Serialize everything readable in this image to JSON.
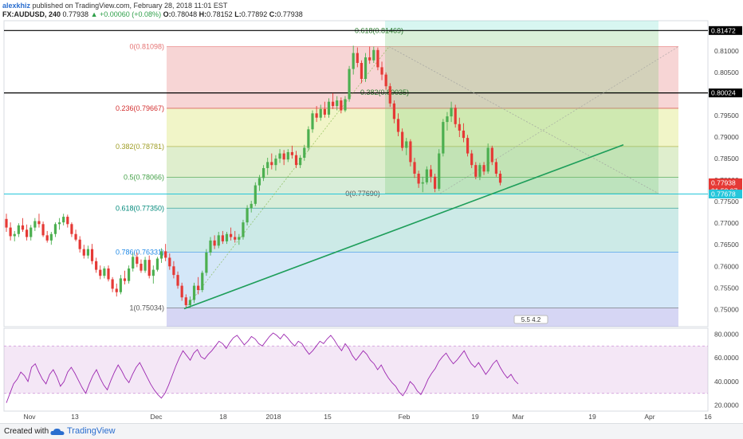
{
  "header": {
    "user": "alexkhiz",
    "published": "published on TradingView.com, February 28, 2018 11:01 EST",
    "symbol": "FX:AUDUSD, 240",
    "last": "0.77938",
    "change": "▲ +0.00060 (+0.08%)",
    "o_label": "O:",
    "o": "0.78048",
    "h_label": "H:",
    "h": "0.78152",
    "l_label": "L:",
    "l": "0.77892",
    "c_label": "C:",
    "c": "0.77938"
  },
  "footer": {
    "created": "Created with",
    "brand": "TradingView"
  },
  "colors": {
    "up": "#4caf50",
    "down": "#e53935",
    "trend": "#1e9e5a",
    "rsi": "#9c27b0"
  },
  "chart_data": {
    "type": "candlestick",
    "price_range": [
      0.746,
      0.817
    ],
    "price_ticks": [
      "0.81000",
      "0.80500",
      "0.80000",
      "0.79500",
      "0.79000",
      "0.78500",
      "0.78000",
      "0.77500",
      "0.77000",
      "0.76500",
      "0.76000",
      "0.75500",
      "0.75000"
    ],
    "x_ticks": [
      "Nov",
      "13",
      "Dec",
      "18",
      "2018",
      "15",
      "Feb",
      "19",
      "Mar",
      "19",
      "Apr",
      "16"
    ],
    "price_labels": [
      {
        "text": "0.81472",
        "kind": "line"
      },
      {
        "text": "0.80024",
        "kind": "line"
      },
      {
        "text": "0.77938",
        "kind": "last"
      },
      {
        "text": "01:58:07",
        "kind": "timer"
      },
      {
        "text": "0.77678",
        "kind": "cyan"
      }
    ],
    "fib_retracement": {
      "low": 0.75034,
      "high": 0.81098,
      "levels": [
        {
          "label": "0(0.81098)",
          "value": 0.81098,
          "color": "#e57373"
        },
        {
          "label": "0.236(0.79667)",
          "value": 0.79667,
          "color": "#d32f2f"
        },
        {
          "label": "0.382(0.78781)",
          "value": 0.78781,
          "color": "#9e9d24"
        },
        {
          "label": "0.5(0.78066)",
          "value": 0.78066,
          "color": "#43a047"
        },
        {
          "label": "0.618(0.77350)",
          "value": 0.7735,
          "color": "#00897b"
        },
        {
          "label": "0.786(0.76331)",
          "value": 0.76331,
          "color": "#1e88e5"
        },
        {
          "label": "1(0.75034)",
          "value": 0.75034,
          "color": "#555555"
        }
      ]
    },
    "fib_projection": {
      "levels": [
        {
          "label": "0.618(0.81469)",
          "value": 0.81469
        },
        {
          "label": "0.382(0.80035)",
          "value": 0.80035
        },
        {
          "label": "0(0.77690)",
          "value": 0.7769
        }
      ]
    },
    "horizontal_lines": [
      0.81472,
      0.80024
    ],
    "trendline": [
      [
        0.75015
      ],
      [
        0.7882
      ]
    ],
    "pattern_label": "5.5 4.2",
    "candles": [
      [
        0.771,
        0.7722,
        0.768,
        0.769
      ],
      [
        0.769,
        0.7702,
        0.766,
        0.767
      ],
      [
        0.767,
        0.7682,
        0.7658,
        0.7675
      ],
      [
        0.7675,
        0.77,
        0.7668,
        0.7695
      ],
      [
        0.7695,
        0.7712,
        0.768,
        0.7685
      ],
      [
        0.7685,
        0.7697,
        0.766,
        0.7668
      ],
      [
        0.7668,
        0.7696,
        0.766,
        0.769
      ],
      [
        0.769,
        0.7712,
        0.7682,
        0.7705
      ],
      [
        0.7705,
        0.7722,
        0.769,
        0.7698
      ],
      [
        0.7698,
        0.7704,
        0.7668,
        0.7672
      ],
      [
        0.7672,
        0.7682,
        0.7655,
        0.766
      ],
      [
        0.766,
        0.768,
        0.765,
        0.7675
      ],
      [
        0.7675,
        0.7702,
        0.7668,
        0.7698
      ],
      [
        0.7698,
        0.7712,
        0.7685,
        0.7702
      ],
      [
        0.7702,
        0.7722,
        0.7695,
        0.7715
      ],
      [
        0.7715,
        0.772,
        0.769,
        0.7698
      ],
      [
        0.7698,
        0.7702,
        0.7668,
        0.7675
      ],
      [
        0.7675,
        0.7685,
        0.7658,
        0.7662
      ],
      [
        0.7662,
        0.767,
        0.7632,
        0.764
      ],
      [
        0.764,
        0.765,
        0.7618,
        0.7625
      ],
      [
        0.7625,
        0.7648,
        0.7618,
        0.764
      ],
      [
        0.764,
        0.7652,
        0.7605,
        0.7612
      ],
      [
        0.7612,
        0.762,
        0.7585,
        0.7592
      ],
      [
        0.7592,
        0.7602,
        0.757,
        0.7578
      ],
      [
        0.7578,
        0.76,
        0.7572,
        0.7595
      ],
      [
        0.7595,
        0.7602,
        0.7565,
        0.757
      ],
      [
        0.757,
        0.7575,
        0.754,
        0.7548
      ],
      [
        0.7548,
        0.756,
        0.753,
        0.754
      ],
      [
        0.754,
        0.758,
        0.7535,
        0.7572
      ],
      [
        0.7572,
        0.759,
        0.7558,
        0.7566
      ],
      [
        0.7566,
        0.7602,
        0.756,
        0.7595
      ],
      [
        0.7595,
        0.763,
        0.7588,
        0.7622
      ],
      [
        0.7622,
        0.7632,
        0.7598,
        0.7606
      ],
      [
        0.7606,
        0.7616,
        0.7585,
        0.759
      ],
      [
        0.759,
        0.7622,
        0.7585,
        0.7615
      ],
      [
        0.7615,
        0.7625,
        0.7572,
        0.7578
      ],
      [
        0.7578,
        0.7602,
        0.756,
        0.7592
      ],
      [
        0.7592,
        0.7622,
        0.7588,
        0.7618
      ],
      [
        0.7618,
        0.7642,
        0.7608,
        0.7635
      ],
      [
        0.7635,
        0.7652,
        0.7612,
        0.762
      ],
      [
        0.762,
        0.763,
        0.7592,
        0.76
      ],
      [
        0.76,
        0.7612,
        0.7572,
        0.758
      ],
      [
        0.758,
        0.7588,
        0.7548,
        0.7555
      ],
      [
        0.7555,
        0.7562,
        0.752,
        0.7528
      ],
      [
        0.7528,
        0.7535,
        0.7503,
        0.751
      ],
      [
        0.751,
        0.753,
        0.7504,
        0.7522
      ],
      [
        0.7522,
        0.7562,
        0.7515,
        0.7555
      ],
      [
        0.7555,
        0.7575,
        0.7535,
        0.7545
      ],
      [
        0.7545,
        0.759,
        0.754,
        0.7585
      ],
      [
        0.7585,
        0.764,
        0.7578,
        0.7632
      ],
      [
        0.7632,
        0.7668,
        0.7625,
        0.766
      ],
      [
        0.766,
        0.7672,
        0.764,
        0.7648
      ],
      [
        0.7648,
        0.768,
        0.7642,
        0.7672
      ],
      [
        0.7672,
        0.7682,
        0.7652,
        0.7658
      ],
      [
        0.7658,
        0.768,
        0.7652,
        0.7675
      ],
      [
        0.7675,
        0.769,
        0.766,
        0.7668
      ],
      [
        0.7668,
        0.7682,
        0.7655,
        0.7662
      ],
      [
        0.7662,
        0.7675,
        0.765,
        0.7668
      ],
      [
        0.7668,
        0.7708,
        0.7662,
        0.7702
      ],
      [
        0.7702,
        0.7742,
        0.7695,
        0.7735
      ],
      [
        0.7735,
        0.7752,
        0.7725,
        0.7745
      ],
      [
        0.7745,
        0.7795,
        0.774,
        0.7788
      ],
      [
        0.7788,
        0.7812,
        0.7775,
        0.7805
      ],
      [
        0.7805,
        0.7835,
        0.7798,
        0.7828
      ],
      [
        0.7828,
        0.7852,
        0.7812,
        0.7842
      ],
      [
        0.7842,
        0.7862,
        0.7825,
        0.7835
      ],
      [
        0.7835,
        0.7858,
        0.7822,
        0.785
      ],
      [
        0.785,
        0.7872,
        0.784,
        0.7862
      ],
      [
        0.7862,
        0.787,
        0.7835,
        0.7848
      ],
      [
        0.7848,
        0.7872,
        0.7842,
        0.7865
      ],
      [
        0.7865,
        0.788,
        0.785,
        0.7858
      ],
      [
        0.7858,
        0.7868,
        0.7828,
        0.7835
      ],
      [
        0.7835,
        0.7858,
        0.7828,
        0.7852
      ],
      [
        0.7852,
        0.7882,
        0.7845,
        0.7875
      ],
      [
        0.7875,
        0.7925,
        0.7868,
        0.7918
      ],
      [
        0.7918,
        0.7962,
        0.791,
        0.7955
      ],
      [
        0.7955,
        0.7972,
        0.7935,
        0.7945
      ],
      [
        0.7945,
        0.7975,
        0.7938,
        0.7965
      ],
      [
        0.7965,
        0.7982,
        0.7945,
        0.7952
      ],
      [
        0.7952,
        0.799,
        0.7945,
        0.7982
      ],
      [
        0.7982,
        0.8002,
        0.7965,
        0.7972
      ],
      [
        0.7972,
        0.7995,
        0.7962,
        0.7985
      ],
      [
        0.7985,
        0.7992,
        0.7955,
        0.7962
      ],
      [
        0.7962,
        0.7995,
        0.7958,
        0.7988
      ],
      [
        0.7988,
        0.8065,
        0.7982,
        0.8058
      ],
      [
        0.8058,
        0.8112,
        0.8045,
        0.8095
      ],
      [
        0.8095,
        0.8108,
        0.8062,
        0.8072
      ],
      [
        0.8072,
        0.8078,
        0.8025,
        0.8035
      ],
      [
        0.8035,
        0.8095,
        0.8028,
        0.8085
      ],
      [
        0.8085,
        0.811,
        0.807,
        0.8078
      ],
      [
        0.8078,
        0.811,
        0.8072,
        0.8102
      ],
      [
        0.8102,
        0.8108,
        0.8055,
        0.8062
      ],
      [
        0.8062,
        0.8075,
        0.8032,
        0.8045
      ],
      [
        0.8045,
        0.805,
        0.801,
        0.8018
      ],
      [
        0.8018,
        0.8025,
        0.797,
        0.7978
      ],
      [
        0.7978,
        0.7985,
        0.7932,
        0.7942
      ],
      [
        0.7942,
        0.7955,
        0.7902,
        0.7912
      ],
      [
        0.7912,
        0.792,
        0.7868,
        0.7875
      ],
      [
        0.7875,
        0.7898,
        0.7858,
        0.789
      ],
      [
        0.789,
        0.7895,
        0.7832,
        0.7842
      ],
      [
        0.7842,
        0.7852,
        0.7805,
        0.7815
      ],
      [
        0.7815,
        0.7822,
        0.7782,
        0.7792
      ],
      [
        0.7792,
        0.7808,
        0.7772,
        0.7795
      ],
      [
        0.7795,
        0.7832,
        0.779,
        0.7825
      ],
      [
        0.7825,
        0.7835,
        0.7795,
        0.7808
      ],
      [
        0.7808,
        0.7815,
        0.7772,
        0.778
      ],
      [
        0.778,
        0.7872,
        0.7775,
        0.7862
      ],
      [
        0.7862,
        0.7942,
        0.7855,
        0.7935
      ],
      [
        0.7935,
        0.7958,
        0.7915,
        0.7948
      ],
      [
        0.7948,
        0.7982,
        0.7935,
        0.7968
      ],
      [
        0.7968,
        0.7975,
        0.7922,
        0.793
      ],
      [
        0.793,
        0.7945,
        0.79,
        0.7915
      ],
      [
        0.7915,
        0.7932,
        0.7888,
        0.7898
      ],
      [
        0.7898,
        0.7905,
        0.7855,
        0.7862
      ],
      [
        0.7862,
        0.787,
        0.7828,
        0.7835
      ],
      [
        0.7835,
        0.7842,
        0.7802,
        0.7808
      ],
      [
        0.7808,
        0.784,
        0.78,
        0.7835
      ],
      [
        0.7835,
        0.7842,
        0.7812,
        0.782
      ],
      [
        0.782,
        0.7885,
        0.7815,
        0.7875
      ],
      [
        0.7875,
        0.788,
        0.7835,
        0.7842
      ],
      [
        0.7842,
        0.785,
        0.7808,
        0.7815
      ],
      [
        0.7815,
        0.7822,
        0.7788,
        0.7794
      ]
    ],
    "rsi": {
      "range": [
        15,
        85
      ],
      "ticks": [
        "80.0000",
        "60.0000",
        "40.0000",
        "20.0000"
      ],
      "band": [
        30,
        70
      ],
      "values": [
        22,
        30,
        38,
        42,
        48,
        45,
        40,
        52,
        55,
        48,
        42,
        38,
        46,
        50,
        44,
        36,
        40,
        48,
        52,
        47,
        41,
        35,
        30,
        38,
        45,
        50,
        43,
        37,
        33,
        41,
        48,
        54,
        49,
        43,
        39,
        46,
        52,
        56,
        50,
        44,
        38,
        33,
        29,
        26,
        30,
        37,
        45,
        53,
        60,
        66,
        62,
        58,
        64,
        67,
        61,
        59,
        63,
        66,
        70,
        74,
        72,
        68,
        73,
        77,
        79,
        75,
        71,
        74,
        78,
        76,
        72,
        70,
        74,
        78,
        81,
        79,
        76,
        80,
        77,
        73,
        70,
        74,
        72,
        67,
        63,
        66,
        70,
        74,
        72,
        76,
        79,
        75,
        70,
        66,
        72,
        68,
        62,
        58,
        62,
        66,
        63,
        58,
        55,
        50,
        54,
        48,
        43,
        39,
        36,
        31,
        28,
        33,
        40,
        37,
        32,
        29,
        35,
        42,
        47,
        51,
        57,
        61,
        64,
        59,
        55,
        58,
        62,
        66,
        60,
        55,
        52,
        56,
        51,
        46,
        50,
        55,
        58,
        52,
        47,
        43,
        46,
        41,
        38
      ]
    }
  }
}
